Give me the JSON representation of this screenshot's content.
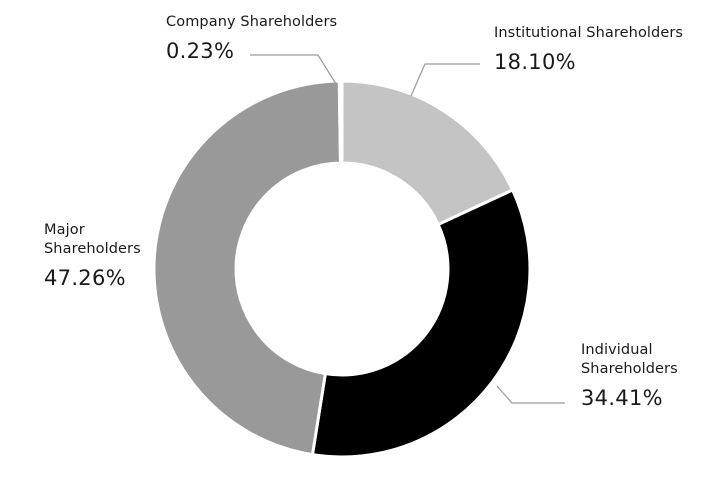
{
  "chart_data": {
    "type": "pie",
    "style": "donut",
    "title": "",
    "legend": "none",
    "slices": [
      {
        "label": "Institutional Shareholders",
        "value": 18.1,
        "display": "18.10%",
        "color": "#c4c4c4"
      },
      {
        "label": "Individual\nShareholders",
        "value": 34.41,
        "display": "34.41%",
        "color": "#000000"
      },
      {
        "label": "Major\nShareholders",
        "value": 47.26,
        "display": "47.26%",
        "color": "#999999"
      },
      {
        "label": "Company Shareholders",
        "value": 0.23,
        "display": "0.23%",
        "color": "#d9d9d9"
      }
    ]
  }
}
